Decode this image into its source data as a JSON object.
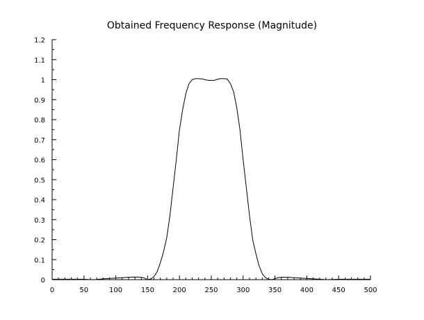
{
  "chart_data": {
    "type": "line",
    "title": "Obtained Frequency Response (Magnitude)",
    "xlabel": "",
    "ylabel": "",
    "xlim": [
      0,
      500
    ],
    "ylim": [
      0,
      1.2
    ],
    "x_ticks": [
      0,
      50,
      100,
      150,
      200,
      250,
      300,
      350,
      400,
      450,
      500
    ],
    "y_ticks": [
      0,
      0.1,
      0.2,
      0.3,
      0.4,
      0.5,
      0.6,
      0.7,
      0.8,
      0.9,
      1,
      1.1,
      1.2
    ],
    "x_tick_labels": [
      "0",
      "50",
      "100",
      "150",
      "200",
      "250",
      "300",
      "350",
      "400",
      "450",
      "500"
    ],
    "y_tick_labels": [
      "0",
      "0.1",
      "0.2",
      "0.3",
      "0.4",
      "0.5",
      "0.6",
      "0.7",
      "0.8",
      "0.9",
      "1",
      "1.1",
      "1.2"
    ],
    "grid": false,
    "legend": "none",
    "line_color": "#000000",
    "series": [
      {
        "x": [
          0,
          50,
          60,
          70,
          80,
          90,
          100,
          110,
          120,
          130,
          140,
          145,
          150,
          155,
          160,
          165,
          170,
          175,
          180,
          185,
          190,
          195,
          200,
          205,
          210,
          215,
          220,
          225,
          230,
          235,
          240,
          245,
          250,
          255,
          260,
          265,
          270,
          275,
          280,
          285,
          290,
          295,
          300,
          305,
          310,
          315,
          320,
          325,
          330,
          335,
          340,
          345,
          350,
          355,
          360,
          370,
          380,
          390,
          400,
          410,
          420,
          430,
          440,
          450,
          460,
          470,
          480,
          490,
          500
        ],
        "y": [
          0.002,
          0.002,
          0.0,
          0.001,
          0.004,
          0.006,
          0.008,
          0.01,
          0.012,
          0.013,
          0.012,
          0.008,
          0.0,
          0.004,
          0.015,
          0.04,
          0.085,
          0.14,
          0.21,
          0.32,
          0.46,
          0.6,
          0.75,
          0.85,
          0.93,
          0.98,
          1.0,
          1.005,
          1.005,
          1.004,
          1.0,
          0.997,
          0.996,
          0.997,
          1.002,
          1.005,
          1.005,
          1.003,
          0.98,
          0.94,
          0.86,
          0.75,
          0.6,
          0.46,
          0.32,
          0.2,
          0.13,
          0.07,
          0.03,
          0.01,
          0.002,
          0.0,
          0.005,
          0.01,
          0.012,
          0.012,
          0.01,
          0.008,
          0.006,
          0.004,
          0.002,
          0.0,
          0.001,
          0.002,
          0.002,
          0.002,
          0.002,
          0.002,
          0.002
        ]
      }
    ]
  }
}
